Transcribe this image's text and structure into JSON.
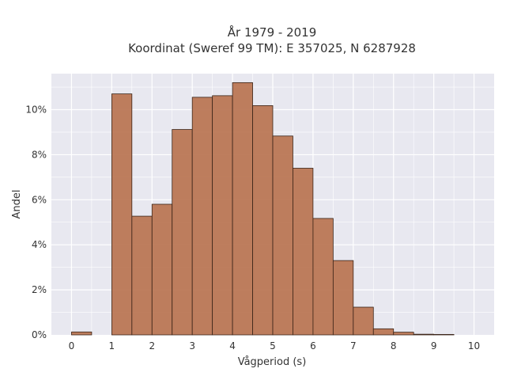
{
  "chart_data": {
    "type": "bar",
    "title_line1": "År 1979 - 2019",
    "title_line2": "Koordinat (Sweref 99 TM): E 357025, N 6287928",
    "xlabel": "Vågperiod (s)",
    "ylabel": "Andel",
    "bin_width": 0.5,
    "xlim": [
      -0.5,
      10.5
    ],
    "ylim": [
      0,
      11.6
    ],
    "grid": true,
    "x_ticks": [
      "0",
      "1",
      "2",
      "3",
      "4",
      "5",
      "6",
      "7",
      "8",
      "9",
      "10"
    ],
    "y_ticks": [
      "0%",
      "2%",
      "4%",
      "6%",
      "8%",
      "10%"
    ],
    "bins": [
      {
        "x": 0.0,
        "value": 0.13
      },
      {
        "x": 0.5,
        "value": 0.0
      },
      {
        "x": 1.0,
        "value": 10.7
      },
      {
        "x": 1.5,
        "value": 5.27
      },
      {
        "x": 2.0,
        "value": 5.8
      },
      {
        "x": 2.5,
        "value": 9.12
      },
      {
        "x": 3.0,
        "value": 10.55
      },
      {
        "x": 3.5,
        "value": 10.62
      },
      {
        "x": 4.0,
        "value": 11.2
      },
      {
        "x": 4.5,
        "value": 10.18
      },
      {
        "x": 5.0,
        "value": 8.83
      },
      {
        "x": 5.5,
        "value": 7.4
      },
      {
        "x": 6.0,
        "value": 5.17
      },
      {
        "x": 6.5,
        "value": 3.3
      },
      {
        "x": 7.0,
        "value": 1.23
      },
      {
        "x": 7.5,
        "value": 0.27
      },
      {
        "x": 8.0,
        "value": 0.12
      },
      {
        "x": 8.5,
        "value": 0.03
      },
      {
        "x": 9.0,
        "value": 0.02
      }
    ],
    "colors": {
      "bar_fill": "#b87350",
      "bar_stroke": "#3a2418",
      "plot_bg": "#e8e8f0",
      "grid": "#ffffff"
    }
  }
}
